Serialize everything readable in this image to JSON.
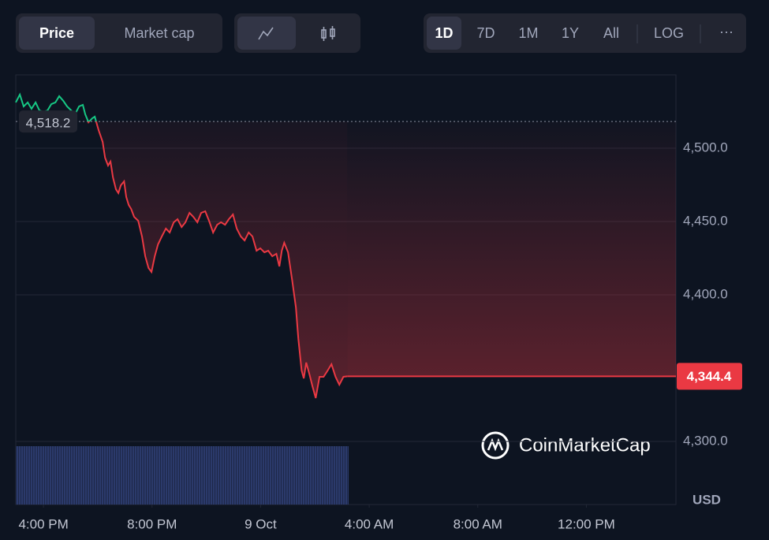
{
  "controls": {
    "metric": [
      "Price",
      "Market cap"
    ],
    "ranges": [
      "1D",
      "7D",
      "1M",
      "1Y",
      "All"
    ],
    "log": "LOG",
    "more": "···"
  },
  "chart_data": {
    "type": "line",
    "color_up": "#16c784",
    "color_down": "#ea3943",
    "x": [
      14.98,
      15.13,
      15.27,
      15.42,
      15.56,
      15.71,
      15.85,
      16,
      16.15,
      16.29,
      16.44,
      16.58,
      16.73,
      16.87,
      17.02,
      17.16,
      17.31,
      17.45,
      17.54,
      17.66,
      17.8,
      17.89,
      18.03,
      18.18,
      18.27,
      18.38,
      18.47,
      18.56,
      18.67,
      18.76,
      18.85,
      18.97,
      19.05,
      19.14,
      19.23,
      19.34,
      19.49,
      19.63,
      19.75,
      19.87,
      19.98,
      20.1,
      20.22,
      20.36,
      20.51,
      20.65,
      20.8,
      20.94,
      21.09,
      21.23,
      21.38,
      21.52,
      21.67,
      21.81,
      21.96,
      22.1,
      22.25,
      22.4,
      22.54,
      22.69,
      22.83,
      22.98,
      23.12,
      23.27,
      23.41,
      23.56,
      23.7,
      23.85,
      23.99,
      24.14,
      24.28,
      24.43,
      24.58,
      24.69,
      24.78,
      24.87,
      25.01,
      25.16,
      25.3,
      25.39,
      25.51,
      25.59,
      25.68,
      25.8,
      25.91,
      26.03,
      26.17,
      26.32,
      26.47,
      26.61,
      26.76,
      26.9,
      27.05,
      27.19
    ],
    "values": [
      4531.2,
      4536.6,
      4528.5,
      4531.2,
      4526.9,
      4531.2,
      4525.8,
      4524.7,
      4525.8,
      4530.1,
      4531.2,
      4535.5,
      4532.3,
      4528.5,
      4525.8,
      4523.1,
      4528.5,
      4529.6,
      4523.1,
      4517.7,
      4520.4,
      4521.5,
      4512.4,
      4504.3,
      4493.5,
      4488.2,
      4490.9,
      4480.1,
      4472,
      4469.4,
      4474.7,
      4477.4,
      4466.7,
      4461.3,
      4458.6,
      4453.2,
      4450.5,
      4439.8,
      4426.3,
      4418.3,
      4415.6,
      4426.3,
      4434.4,
      4439.8,
      4445.2,
      4442.5,
      4449.5,
      4451.6,
      4446.2,
      4449.5,
      4455.9,
      4453.2,
      4449.5,
      4455.9,
      4457,
      4450.5,
      4442.5,
      4447.8,
      4449.5,
      4447.8,
      4451.6,
      4454.8,
      4445.2,
      4439.8,
      4437.1,
      4442.5,
      4439.8,
      4430.1,
      4431.7,
      4429,
      4430.1,
      4426.3,
      4428,
      4419.4,
      4430.1,
      4435.5,
      4429,
      4410.2,
      4391.4,
      4369.9,
      4348.4,
      4343,
      4353.8,
      4345.7,
      4337.6,
      4329.6,
      4344.1,
      4344.1,
      4348.4,
      4352.7,
      4344.1,
      4338.7,
      4344.1,
      4344.4
    ],
    "reference": {
      "value": 4518.2,
      "label": "4,518.2"
    },
    "last_price": {
      "value": 4344.4,
      "label": "4,344.4"
    },
    "xlim": [
      14.98,
      39.3
    ],
    "xticks": [
      {
        "value": 16,
        "label": "4:00 PM"
      },
      {
        "value": 20,
        "label": "8:00 PM"
      },
      {
        "value": 24,
        "label": "9 Oct"
      },
      {
        "value": 28,
        "label": "4:00 AM"
      },
      {
        "value": 32,
        "label": "8:00 AM"
      },
      {
        "value": 36,
        "label": "12:00 PM"
      }
    ],
    "ylim": [
      4257,
      4550
    ],
    "yticks": [
      {
        "value": 4300,
        "label": "4,300.0"
      },
      {
        "value": 4400,
        "label": "4,400.0"
      },
      {
        "value": 4450,
        "label": "4,450.0"
      },
      {
        "value": 4500,
        "label": "4,500.0"
      }
    ],
    "grid": true,
    "unit": "USD",
    "watermark": "CoinMarketCap"
  }
}
